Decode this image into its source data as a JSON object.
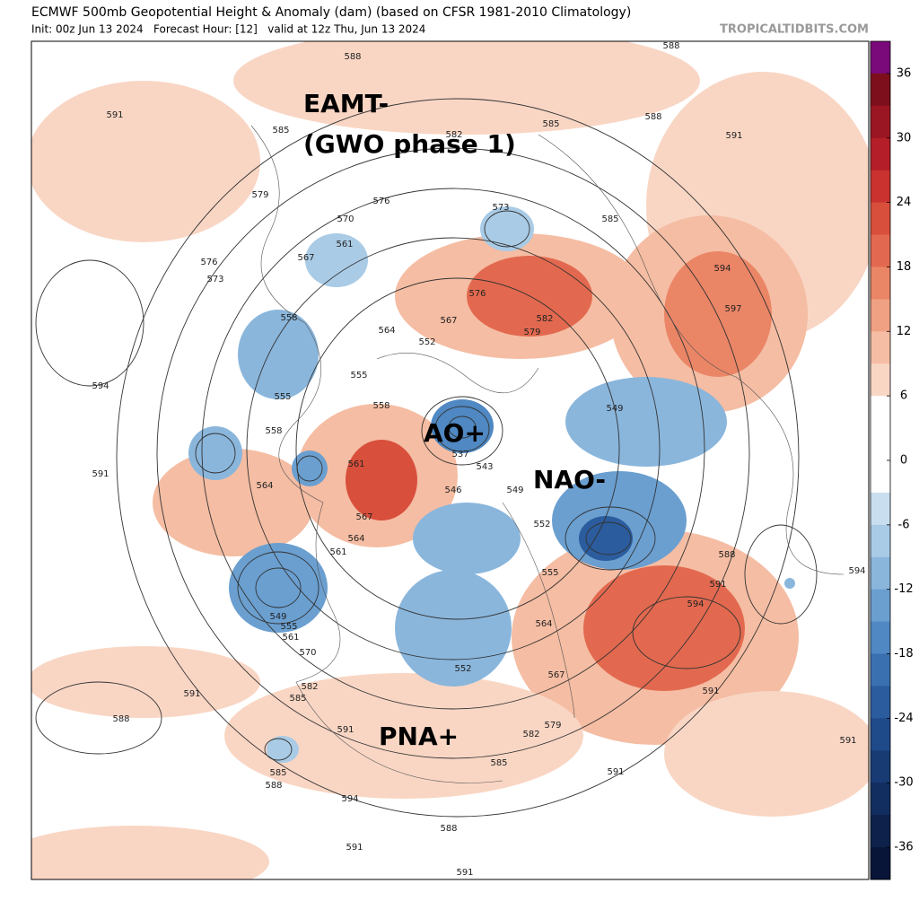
{
  "header": {
    "title": "ECMWF 500mb Geopotential Height & Anomaly (dam) (based on CFSR 1981-2010 Climatology)",
    "subtitle": "Init: 00z Jun 13 2024   Forecast Hour: [12]   valid at 12z Thu, Jun 13 2024",
    "site": "TROPICALTIDBITS.COM"
  },
  "annotations": [
    "EAMT-",
    "(GWO phase 1)",
    "AO+",
    "NAO-",
    "PNA+"
  ],
  "colorbar": {
    "lim": [
      -39,
      39
    ],
    "ticks": [
      36,
      30,
      24,
      18,
      12,
      6,
      0,
      -6,
      -12,
      -18,
      -24,
      -30,
      -36
    ],
    "colors": [
      "#7a0a7a",
      "#7d0f1c",
      "#9a1622",
      "#b31e28",
      "#c9322f",
      "#d84f3c",
      "#e2694f",
      "#ea8566",
      "#f0a183",
      "#f5bda3",
      "#f9d6c4",
      "#ffffff",
      "#ffffff",
      "#ffffff",
      "#c9dff0",
      "#a9cbe6",
      "#8ab6dc",
      "#6a9fd0",
      "#4f88c2",
      "#3a70b0",
      "#2b5c9d",
      "#1f4a89",
      "#183b74",
      "#122e60",
      "#0d214b",
      "#081538"
    ]
  },
  "contour_labels": [
    588,
    591,
    585,
    582,
    585,
    588,
    591,
    588,
    579,
    576,
    573,
    570,
    585,
    561,
    567,
    576,
    573,
    594,
    597,
    576,
    582,
    567,
    579,
    558,
    564,
    552,
    594,
    555,
    555,
    558,
    549,
    558,
    537,
    543,
    591,
    561,
    564,
    546,
    549,
    552,
    567,
    564,
    561,
    555,
    588,
    594,
    591,
    594,
    549,
    555,
    561,
    570,
    564,
    552,
    567,
    582,
    585,
    591,
    588,
    591,
    579,
    582,
    591,
    585,
    591,
    585,
    588,
    594,
    591,
    588,
    591,
    591
  ]
}
